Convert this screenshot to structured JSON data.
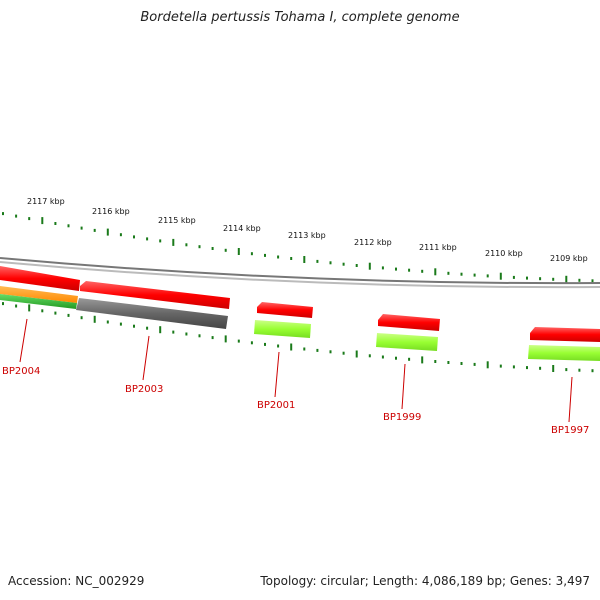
{
  "title": "Bordetella pertussis Tohama I, complete genome",
  "footer": {
    "accession": "Accession: NC_002929",
    "summary": "Topology: circular; Length: 4,086,189 bp; Genes: 3,497"
  },
  "ticks": [
    "2117 kbp",
    "2116 kbp",
    "2115 kbp",
    "2114 kbp",
    "2113 kbp",
    "2112 kbp",
    "2111 kbp",
    "2110 kbp",
    "2109 kbp"
  ],
  "genes": [
    "BP2004",
    "BP2003",
    "BP2001",
    "BP1999",
    "BP1997"
  ],
  "colors": {
    "forward_cds": "#ff0000",
    "reverse_grey": "#666666",
    "reverse_green": "#99ff33",
    "orange_feature": "#ff9900",
    "tick_green": "#1a7a1a",
    "backbone": "#999999",
    "label_red": "#cc0000"
  }
}
